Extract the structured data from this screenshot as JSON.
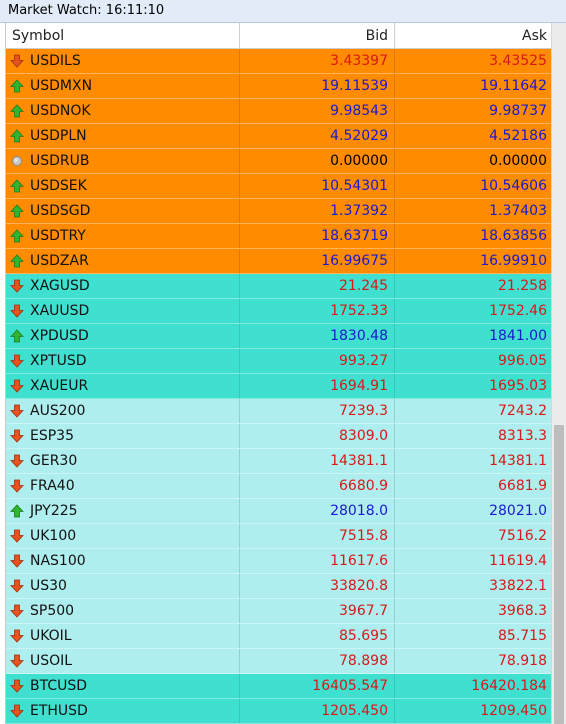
{
  "window": {
    "title": "Market Watch: 16:11:10"
  },
  "columns": {
    "symbol": "Symbol",
    "bid": "Bid",
    "ask": "Ask"
  },
  "colors": {
    "fx_row_bg": "#ff8c00",
    "metal_crypto_row_bg": "#40e0d0",
    "index_row_bg": "#afeeee",
    "price_up": "#1a1acd",
    "price_down": "#d81818",
    "arrow_up": "#2fb52f",
    "arrow_down": "#e8521e"
  },
  "rows": [
    {
      "symbol": "USDILS",
      "bid": "3.43397",
      "ask": "3.43525",
      "dir": "down",
      "group": "fx"
    },
    {
      "symbol": "USDMXN",
      "bid": "19.11539",
      "ask": "19.11642",
      "dir": "up",
      "group": "fx"
    },
    {
      "symbol": "USDNOK",
      "bid": "9.98543",
      "ask": "9.98737",
      "dir": "up",
      "group": "fx"
    },
    {
      "symbol": "USDPLN",
      "bid": "4.52029",
      "ask": "4.52186",
      "dir": "up",
      "group": "fx"
    },
    {
      "symbol": "USDRUB",
      "bid": "0.00000",
      "ask": "0.00000",
      "dir": "neutral",
      "group": "fx"
    },
    {
      "symbol": "USDSEK",
      "bid": "10.54301",
      "ask": "10.54606",
      "dir": "up",
      "group": "fx"
    },
    {
      "symbol": "USDSGD",
      "bid": "1.37392",
      "ask": "1.37403",
      "dir": "up",
      "group": "fx"
    },
    {
      "symbol": "USDTRY",
      "bid": "18.63719",
      "ask": "18.63856",
      "dir": "up",
      "group": "fx"
    },
    {
      "symbol": "USDZAR",
      "bid": "16.99675",
      "ask": "16.99910",
      "dir": "up",
      "group": "fx"
    },
    {
      "symbol": "XAGUSD",
      "bid": "21.245",
      "ask": "21.258",
      "dir": "down",
      "group": "metal"
    },
    {
      "symbol": "XAUUSD",
      "bid": "1752.33",
      "ask": "1752.46",
      "dir": "down",
      "group": "metal"
    },
    {
      "symbol": "XPDUSD",
      "bid": "1830.48",
      "ask": "1841.00",
      "dir": "up",
      "group": "metal"
    },
    {
      "symbol": "XPTUSD",
      "bid": "993.27",
      "ask": "996.05",
      "dir": "down",
      "group": "metal"
    },
    {
      "symbol": "XAUEUR",
      "bid": "1694.91",
      "ask": "1695.03",
      "dir": "down",
      "group": "metal"
    },
    {
      "symbol": "AUS200",
      "bid": "7239.3",
      "ask": "7243.2",
      "dir": "down",
      "group": "index"
    },
    {
      "symbol": "ESP35",
      "bid": "8309.0",
      "ask": "8313.3",
      "dir": "down",
      "group": "index"
    },
    {
      "symbol": "GER30",
      "bid": "14381.1",
      "ask": "14381.1",
      "dir": "down",
      "group": "index"
    },
    {
      "symbol": "FRA40",
      "bid": "6680.9",
      "ask": "6681.9",
      "dir": "down",
      "group": "index"
    },
    {
      "symbol": "JPY225",
      "bid": "28018.0",
      "ask": "28021.0",
      "dir": "up",
      "group": "index"
    },
    {
      "symbol": "UK100",
      "bid": "7515.8",
      "ask": "7516.2",
      "dir": "down",
      "group": "index"
    },
    {
      "symbol": "NAS100",
      "bid": "11617.6",
      "ask": "11619.4",
      "dir": "down",
      "group": "index"
    },
    {
      "symbol": "US30",
      "bid": "33820.8",
      "ask": "33822.1",
      "dir": "down",
      "group": "index"
    },
    {
      "symbol": "SP500",
      "bid": "3967.7",
      "ask": "3968.3",
      "dir": "down",
      "group": "index"
    },
    {
      "symbol": "UKOIL",
      "bid": "85.695",
      "ask": "85.715",
      "dir": "down",
      "group": "index"
    },
    {
      "symbol": "USOIL",
      "bid": "78.898",
      "ask": "78.918",
      "dir": "down",
      "group": "index"
    },
    {
      "symbol": "BTCUSD",
      "bid": "16405.547",
      "ask": "16420.184",
      "dir": "down",
      "group": "metal"
    },
    {
      "symbol": "ETHUSD",
      "bid": "1205.450",
      "ask": "1209.450",
      "dir": "down",
      "group": "metal"
    }
  ]
}
